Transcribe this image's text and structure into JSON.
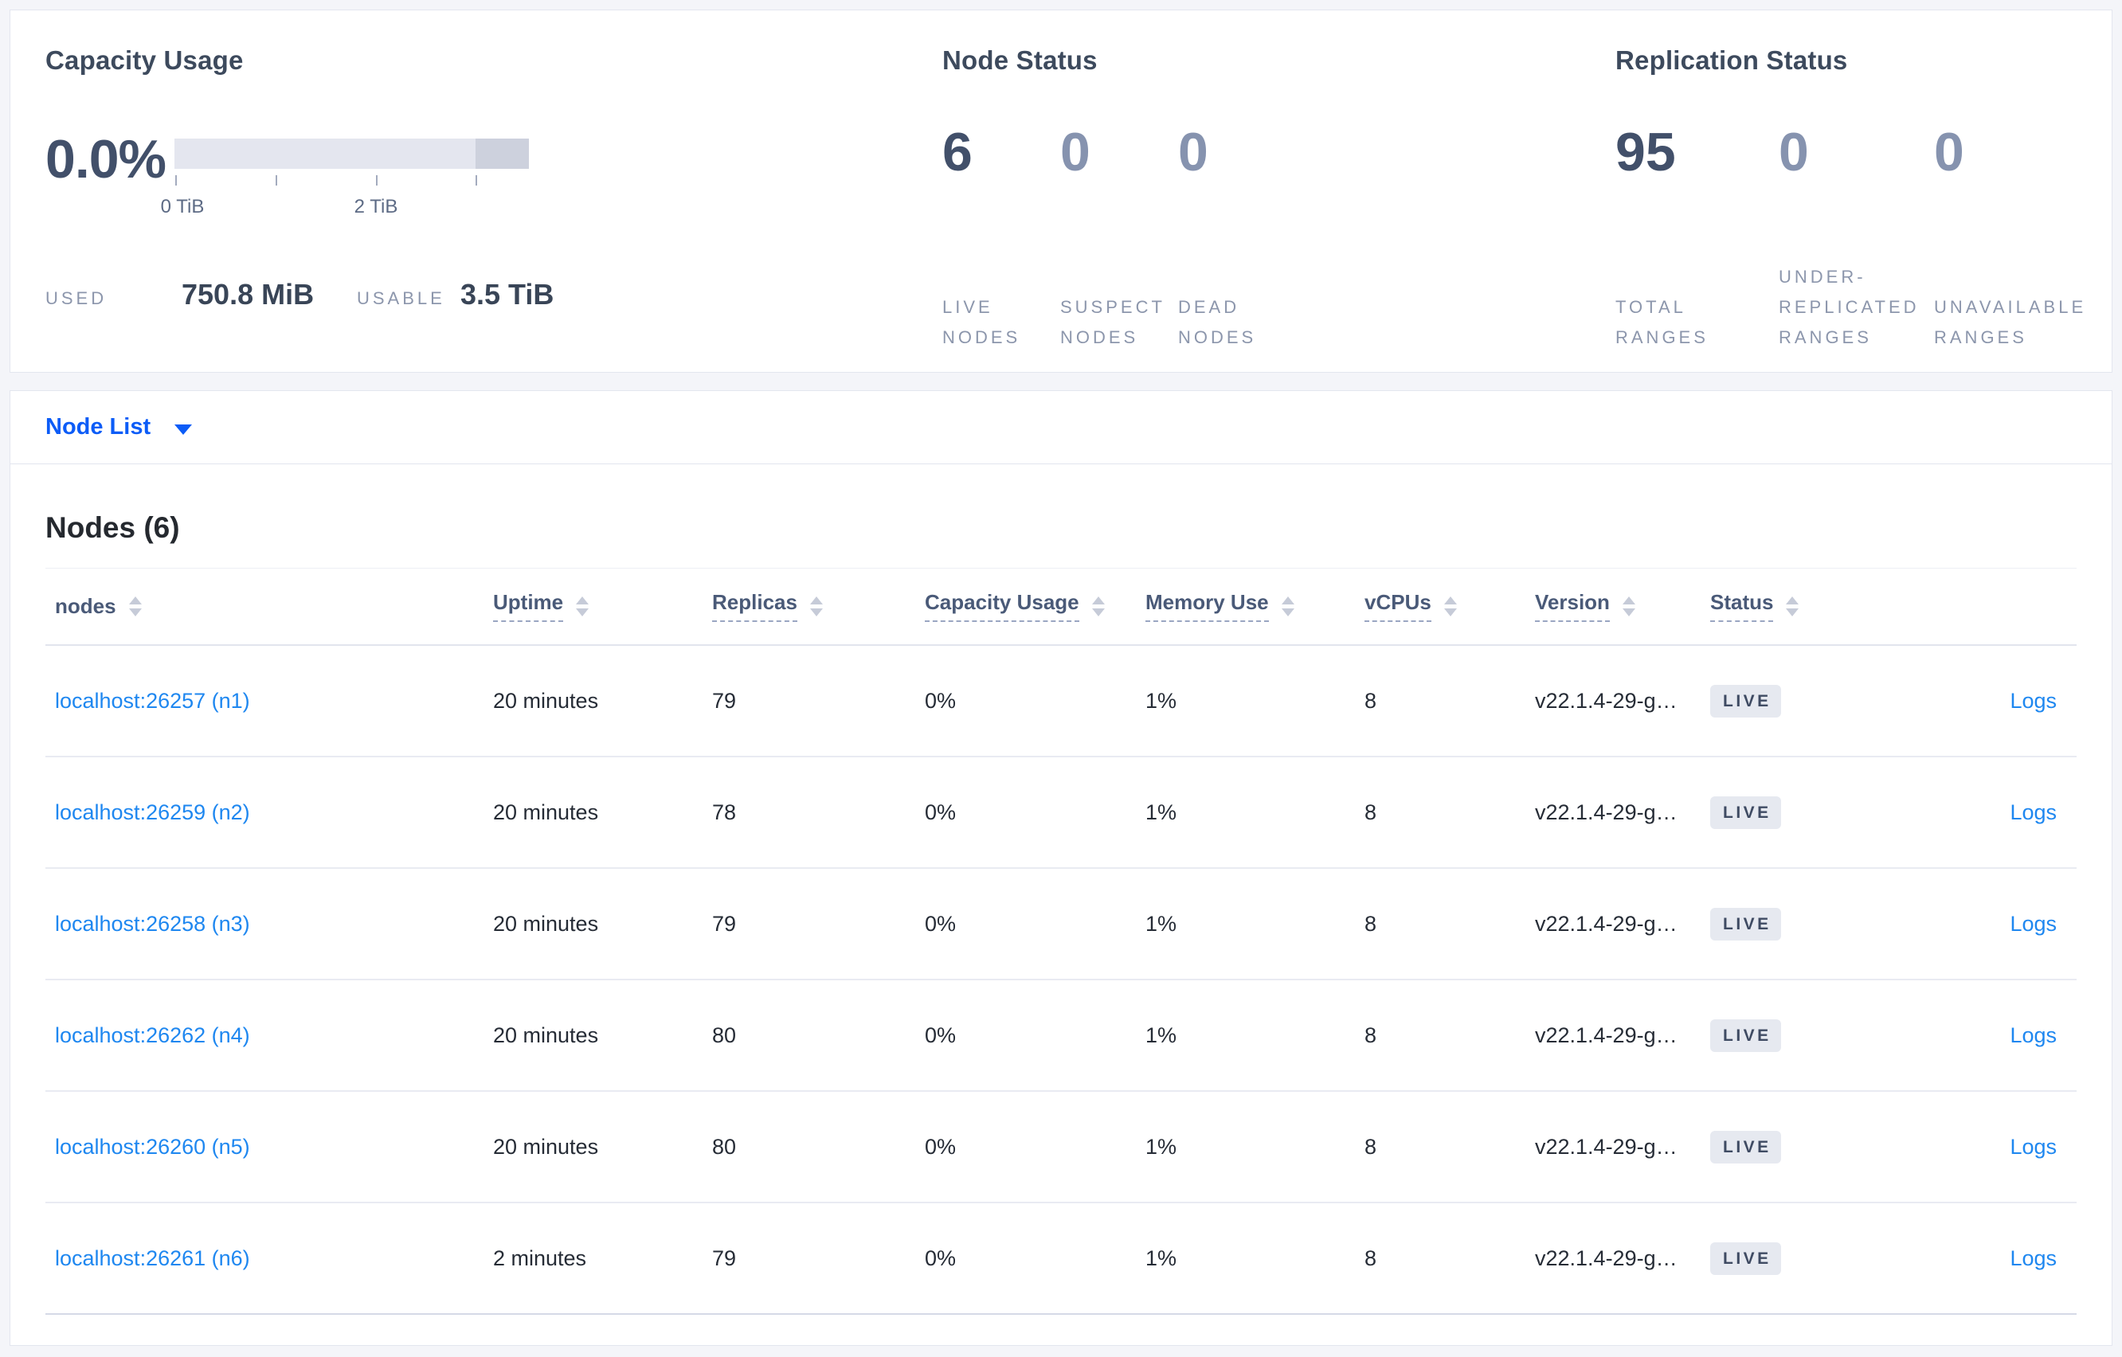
{
  "capacity": {
    "title": "Capacity Usage",
    "percent": "0.0%",
    "tick_labels": [
      "0 TiB",
      "2 TiB"
    ],
    "used_label": "USED",
    "used_value": "750.8 MiB",
    "usable_label": "USABLE",
    "usable_value": "3.5 TiB"
  },
  "node_status": {
    "title": "Node Status",
    "stats": [
      {
        "value": "6",
        "label": "LIVE NODES"
      },
      {
        "value": "0",
        "label": "SUSPECT NODES"
      },
      {
        "value": "0",
        "label": "DEAD NODES"
      }
    ]
  },
  "replication": {
    "title": "Replication Status",
    "stats": [
      {
        "value": "95",
        "label": "TOTAL RANGES"
      },
      {
        "value": "0",
        "label": "UNDER-REPLICATED RANGES"
      },
      {
        "value": "0",
        "label": "UNAVAILABLE RANGES"
      }
    ]
  },
  "view_selector": {
    "label": "Node List"
  },
  "nodes": {
    "title": "Nodes (6)",
    "columns": {
      "nodes": "nodes",
      "uptime": "Uptime",
      "replicas": "Replicas",
      "capacity": "Capacity Usage",
      "memory": "Memory Use",
      "vcpus": "vCPUs",
      "version": "Version",
      "status": "Status"
    },
    "logs_label": "Logs",
    "rows": [
      {
        "address": "localhost:26257 (n1)",
        "uptime": "20 minutes",
        "replicas": "79",
        "capacity": "0%",
        "memory": "1%",
        "vcpus": "8",
        "version": "v22.1.4-29-g…",
        "status": "LIVE"
      },
      {
        "address": "localhost:26259 (n2)",
        "uptime": "20 minutes",
        "replicas": "78",
        "capacity": "0%",
        "memory": "1%",
        "vcpus": "8",
        "version": "v22.1.4-29-g…",
        "status": "LIVE"
      },
      {
        "address": "localhost:26258 (n3)",
        "uptime": "20 minutes",
        "replicas": "79",
        "capacity": "0%",
        "memory": "1%",
        "vcpus": "8",
        "version": "v22.1.4-29-g…",
        "status": "LIVE"
      },
      {
        "address": "localhost:26262 (n4)",
        "uptime": "20 minutes",
        "replicas": "80",
        "capacity": "0%",
        "memory": "1%",
        "vcpus": "8",
        "version": "v22.1.4-29-g…",
        "status": "LIVE"
      },
      {
        "address": "localhost:26260 (n5)",
        "uptime": "20 minutes",
        "replicas": "80",
        "capacity": "0%",
        "memory": "1%",
        "vcpus": "8",
        "version": "v22.1.4-29-g…",
        "status": "LIVE"
      },
      {
        "address": "localhost:26261 (n6)",
        "uptime": "2 minutes",
        "replicas": "79",
        "capacity": "0%",
        "memory": "1%",
        "vcpus": "8",
        "version": "v22.1.4-29-g…",
        "status": "LIVE"
      }
    ]
  },
  "colors": {
    "page_background": "#f4f5f9",
    "accent_blue": "#0c5cf7",
    "link_blue": "#1e87f0",
    "dark_slate": "#42506a",
    "muted_slate": "#8693af",
    "bar_light": "#e4e6ef",
    "bar_dark": "#cdd1dd",
    "badge_background": "#e6e9f0"
  }
}
